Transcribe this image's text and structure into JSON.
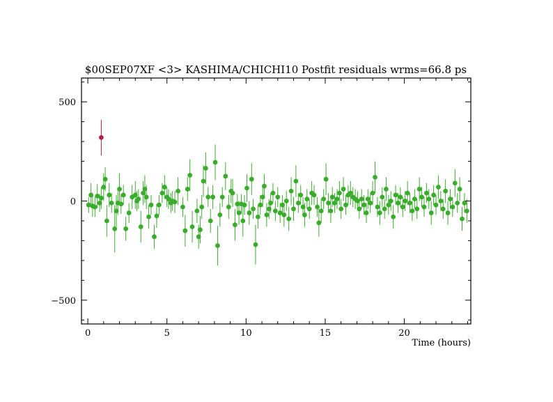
{
  "chart_data": {
    "type": "scatter",
    "title": "$00SEP07XF <3> KASHIMA/CHICHI10 Postfit residuals wrms=66.8  ps",
    "xlabel": "Time (hours)",
    "ylabel": "",
    "xlim": [
      -0.4,
      24.2
    ],
    "ylim": [
      -620,
      620
    ],
    "x_ticks": [
      0,
      5,
      10,
      15,
      20
    ],
    "y_ticks": [
      -500,
      0,
      500
    ],
    "grid": false,
    "series": [
      {
        "color": "#3aac2b",
        "points": [
          [
            0.05,
            -20,
            40
          ],
          [
            0.2,
            30,
            60
          ],
          [
            0.3,
            -25,
            55
          ],
          [
            0.45,
            -30,
            50
          ],
          [
            0.6,
            25,
            60
          ],
          [
            0.75,
            -10,
            45
          ],
          [
            0.85,
            15,
            55
          ],
          [
            1.0,
            70,
            70
          ],
          [
            1.1,
            110,
            60
          ],
          [
            1.2,
            -100,
            80
          ],
          [
            1.35,
            30,
            60
          ],
          [
            1.5,
            -10,
            50
          ],
          [
            1.7,
            -140,
            120
          ],
          [
            1.8,
            -50,
            80
          ],
          [
            1.9,
            -10,
            60
          ],
          [
            2.0,
            60,
            80
          ],
          [
            2.1,
            -15,
            50
          ],
          [
            2.25,
            30,
            50
          ],
          [
            2.4,
            -140,
            60
          ],
          [
            2.6,
            -60,
            50
          ],
          [
            2.8,
            20,
            60
          ],
          [
            3.0,
            30,
            70
          ],
          [
            3.1,
            0,
            50
          ],
          [
            3.2,
            10,
            50
          ],
          [
            3.35,
            -130,
            80
          ],
          [
            3.5,
            40,
            60
          ],
          [
            3.6,
            60,
            70
          ],
          [
            3.7,
            20,
            60
          ],
          [
            3.85,
            -80,
            60
          ],
          [
            4.0,
            -20,
            50
          ],
          [
            4.2,
            -180,
            60
          ],
          [
            4.35,
            -75,
            60
          ],
          [
            4.5,
            -20,
            50
          ],
          [
            4.7,
            40,
            50
          ],
          [
            4.85,
            70,
            60
          ],
          [
            5.0,
            20,
            50
          ],
          [
            5.1,
            10,
            50
          ],
          [
            5.25,
            -10,
            50
          ],
          [
            5.35,
            0,
            50
          ],
          [
            5.5,
            -5,
            55
          ],
          [
            5.7,
            50,
            70
          ],
          [
            6.0,
            -30,
            50
          ],
          [
            6.15,
            -150,
            80
          ],
          [
            6.3,
            60,
            60
          ],
          [
            6.45,
            130,
            80
          ],
          [
            6.6,
            -130,
            80
          ],
          [
            6.9,
            -50,
            60
          ],
          [
            7.0,
            -180,
            60
          ],
          [
            7.1,
            -145,
            70
          ],
          [
            7.2,
            -30,
            60
          ],
          [
            7.3,
            100,
            80
          ],
          [
            7.45,
            165,
            80
          ],
          [
            7.6,
            20,
            50
          ],
          [
            7.75,
            -100,
            60
          ],
          [
            7.9,
            20,
            60
          ],
          [
            8.05,
            195,
            90
          ],
          [
            8.2,
            -225,
            100
          ],
          [
            8.35,
            -70,
            60
          ],
          [
            8.5,
            20,
            50
          ],
          [
            8.7,
            125,
            70
          ],
          [
            8.9,
            -30,
            60
          ],
          [
            9.05,
            50,
            60
          ],
          [
            9.15,
            40,
            70
          ],
          [
            9.3,
            -120,
            80
          ],
          [
            9.45,
            -15,
            50
          ],
          [
            9.55,
            -60,
            60
          ],
          [
            9.7,
            -15,
            50
          ],
          [
            9.8,
            -100,
            80
          ],
          [
            9.9,
            -20,
            50
          ],
          [
            10.05,
            65,
            70
          ],
          [
            10.2,
            -60,
            60
          ],
          [
            10.35,
            110,
            80
          ],
          [
            10.45,
            -40,
            50
          ],
          [
            10.6,
            -220,
            100
          ],
          [
            10.75,
            -80,
            60
          ],
          [
            10.9,
            -20,
            50
          ],
          [
            11.05,
            20,
            50
          ],
          [
            11.15,
            75,
            60
          ],
          [
            11.3,
            -70,
            60
          ],
          [
            11.45,
            -40,
            50
          ],
          [
            11.55,
            -10,
            50
          ],
          [
            11.7,
            40,
            50
          ],
          [
            11.85,
            -50,
            50
          ],
          [
            12.0,
            20,
            50
          ],
          [
            12.15,
            -60,
            50
          ],
          [
            12.3,
            -20,
            50
          ],
          [
            12.4,
            -70,
            60
          ],
          [
            12.55,
            0,
            50
          ],
          [
            12.7,
            -90,
            60
          ],
          [
            12.85,
            50,
            70
          ],
          [
            13.0,
            -40,
            60
          ],
          [
            13.15,
            100,
            80
          ],
          [
            13.3,
            -10,
            50
          ],
          [
            13.45,
            30,
            50
          ],
          [
            13.6,
            -30,
            50
          ],
          [
            13.7,
            -70,
            60
          ],
          [
            13.85,
            10,
            50
          ],
          [
            14.0,
            -40,
            50
          ],
          [
            14.15,
            40,
            60
          ],
          [
            14.3,
            30,
            50
          ],
          [
            14.5,
            -30,
            50
          ],
          [
            14.6,
            -110,
            70
          ],
          [
            14.75,
            -50,
            60
          ],
          [
            14.9,
            10,
            50
          ],
          [
            15.05,
            110,
            80
          ],
          [
            15.2,
            -10,
            50
          ],
          [
            15.35,
            -50,
            60
          ],
          [
            15.45,
            20,
            50
          ],
          [
            15.6,
            -10,
            50
          ],
          [
            15.75,
            10,
            50
          ],
          [
            15.9,
            40,
            60
          ],
          [
            16.0,
            -40,
            50
          ],
          [
            16.15,
            60,
            60
          ],
          [
            16.3,
            -20,
            50
          ],
          [
            16.45,
            30,
            50
          ],
          [
            16.6,
            40,
            60
          ],
          [
            16.75,
            20,
            50
          ],
          [
            16.9,
            10,
            50
          ],
          [
            17.05,
            0,
            50
          ],
          [
            17.15,
            -40,
            50
          ],
          [
            17.3,
            10,
            50
          ],
          [
            17.45,
            -20,
            50
          ],
          [
            17.6,
            -60,
            50
          ],
          [
            17.7,
            10,
            50
          ],
          [
            17.85,
            -10,
            50
          ],
          [
            18.0,
            40,
            60
          ],
          [
            18.15,
            120,
            80
          ],
          [
            18.3,
            -30,
            50
          ],
          [
            18.45,
            -60,
            60
          ],
          [
            18.6,
            20,
            50
          ],
          [
            18.75,
            -40,
            50
          ],
          [
            18.85,
            60,
            60
          ],
          [
            19.0,
            -20,
            50
          ],
          [
            19.15,
            0,
            50
          ],
          [
            19.3,
            -80,
            60
          ],
          [
            19.45,
            30,
            50
          ],
          [
            19.6,
            -10,
            50
          ],
          [
            19.75,
            20,
            50
          ],
          [
            19.9,
            -30,
            50
          ],
          [
            20.05,
            0,
            50
          ],
          [
            20.2,
            40,
            60
          ],
          [
            20.35,
            -10,
            50
          ],
          [
            20.5,
            -50,
            50
          ],
          [
            20.65,
            10,
            50
          ],
          [
            20.8,
            -40,
            50
          ],
          [
            20.95,
            60,
            60
          ],
          [
            21.1,
            20,
            50
          ],
          [
            21.25,
            -30,
            50
          ],
          [
            21.4,
            40,
            50
          ],
          [
            21.55,
            10,
            50
          ],
          [
            21.7,
            -60,
            60
          ],
          [
            21.85,
            30,
            50
          ],
          [
            22.0,
            -20,
            50
          ],
          [
            22.15,
            70,
            60
          ],
          [
            22.3,
            0,
            50
          ],
          [
            22.45,
            -40,
            50
          ],
          [
            22.6,
            50,
            60
          ],
          [
            22.75,
            -60,
            60
          ],
          [
            22.9,
            10,
            50
          ],
          [
            23.05,
            -30,
            50
          ],
          [
            23.2,
            90,
            70
          ],
          [
            23.35,
            -10,
            50
          ],
          [
            23.5,
            60,
            60
          ],
          [
            23.65,
            -90,
            60
          ],
          [
            23.8,
            -10,
            50
          ],
          [
            23.95,
            -50,
            60
          ]
        ]
      },
      {
        "color": "#b0204a",
        "points": [
          [
            0.85,
            320,
            90
          ]
        ]
      }
    ]
  }
}
